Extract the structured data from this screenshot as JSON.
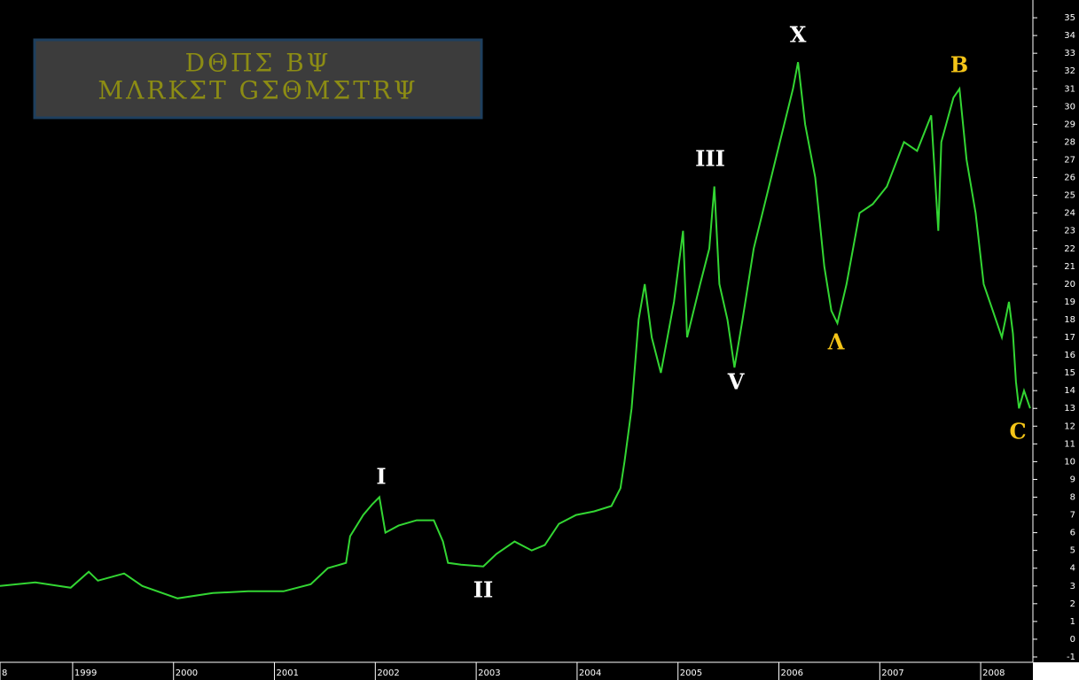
{
  "chart_data": {
    "type": "line",
    "watermark": [
      "DΘΠΣ BΨ",
      "MΛRKΣT GΣΘMΣTRΨ"
    ],
    "x": [
      1998.28,
      1998.63,
      1998.98,
      1999.16,
      1999.25,
      1999.51,
      1999.69,
      2000.04,
      2000.39,
      2000.74,
      2001.09,
      2001.36,
      2001.53,
      2001.71,
      2001.75,
      2001.88,
      2001.97,
      2002.04,
      2002.1,
      2002.23,
      2002.41,
      2002.58,
      2002.67,
      2002.72,
      2002.85,
      2003.07,
      2003.2,
      2003.38,
      2003.55,
      2003.68,
      2003.82,
      2003.99,
      2004.17,
      2004.34,
      2004.43,
      2004.47,
      2004.54,
      2004.61,
      2004.67,
      2004.74,
      2004.83,
      2004.96,
      2005.05,
      2005.09,
      2005.22,
      2005.31,
      2005.36,
      2005.41,
      2005.49,
      2005.56,
      2005.64,
      2005.75,
      2005.88,
      2006.01,
      2006.14,
      2006.19,
      2006.26,
      2006.36,
      2006.45,
      2006.52,
      2006.58,
      2006.67,
      2006.8,
      2006.93,
      2007.07,
      2007.24,
      2007.37,
      2007.51,
      2007.58,
      2007.61,
      2007.73,
      2007.79,
      2007.86,
      2007.95,
      2008.03,
      2008.12,
      2008.21,
      2008.28,
      2008.32,
      2008.35,
      2008.38,
      2008.43,
      2008.49
    ],
    "series": [
      {
        "color": "#33d633",
        "values": [
          3.0,
          3.2,
          2.9,
          3.8,
          3.3,
          3.7,
          3.0,
          2.3,
          2.6,
          2.7,
          2.7,
          3.1,
          4.0,
          4.3,
          5.8,
          7.0,
          7.6,
          8.0,
          6.0,
          6.4,
          6.7,
          6.7,
          5.5,
          4.3,
          4.2,
          4.1,
          4.8,
          5.5,
          5.0,
          5.3,
          6.5,
          7.0,
          7.2,
          7.5,
          8.5,
          10,
          13,
          18,
          20,
          17,
          15,
          19,
          23,
          17,
          20,
          22,
          25.5,
          20,
          18,
          15.3,
          18,
          22,
          25,
          28,
          31,
          32.5,
          29,
          26,
          21,
          18.5,
          17.8,
          20,
          24,
          24.5,
          25.5,
          28,
          27.5,
          29.5,
          23,
          28,
          30.5,
          31,
          27,
          24,
          20,
          18.5,
          17,
          19,
          17.2,
          14.5,
          13,
          14,
          13
        ]
      }
    ],
    "annotations": [
      {
        "text": "I",
        "color": "#ffffff"
      },
      {
        "text": "II",
        "color": "#ffffff"
      },
      {
        "text": "III",
        "color": "#ffffff"
      },
      {
        "text": "V",
        "color": "#ffffff"
      },
      {
        "text": "X",
        "color": "#ffffff"
      },
      {
        "text": "Λ",
        "color": "#f5c518"
      },
      {
        "text": "B",
        "color": "#f5c518"
      },
      {
        "text": "C",
        "color": "#f5c518"
      }
    ],
    "xlim": [
      1998.28,
      2008.5
    ],
    "xticks": [
      {
        "value": 1998.28,
        "label": "8"
      },
      1999,
      2000,
      2001,
      2002,
      2003,
      2004,
      2005,
      2006,
      2007,
      2008
    ],
    "ylim": [
      -1.3,
      36
    ],
    "yticks": [
      -1,
      0,
      1,
      2,
      3,
      4,
      5,
      6,
      7,
      8,
      9,
      10,
      11,
      12,
      13,
      14,
      15,
      16,
      17,
      18,
      19,
      20,
      21,
      22,
      23,
      24,
      25,
      26,
      27,
      28,
      29,
      30,
      31,
      32,
      33,
      34,
      35
    ]
  }
}
